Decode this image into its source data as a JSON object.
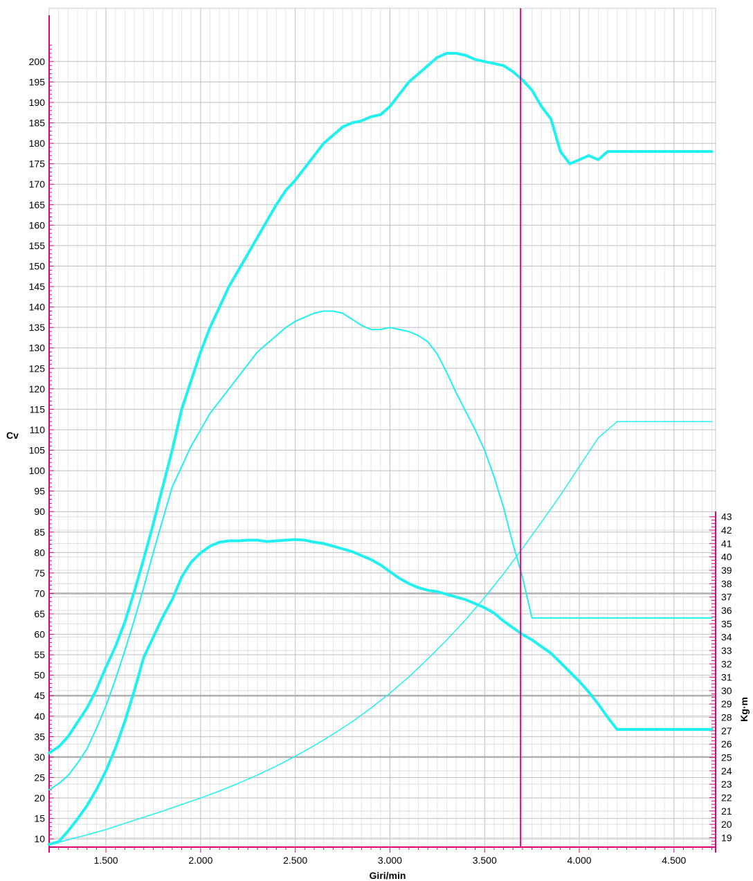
{
  "chart_data": {
    "type": "line",
    "xlabel": "Giri/min",
    "ylabel_left": "Cv",
    "ylabel_right": "Kg·m",
    "xlim": [
      1200,
      4720
    ],
    "ylim_left": [
      8,
      213
    ],
    "ylim_right": [
      18.3,
      43.4
    ],
    "x_ticks": [
      {
        "value": 1500,
        "label": "1.500"
      },
      {
        "value": 2000,
        "label": "2.000"
      },
      {
        "value": 2500,
        "label": "2.500"
      },
      {
        "value": 3000,
        "label": "3.000"
      },
      {
        "value": 3500,
        "label": "3.500"
      },
      {
        "value": 4000,
        "label": "4.000"
      },
      {
        "value": 4500,
        "label": "4.500"
      }
    ],
    "y_left_ticks": [
      10,
      15,
      20,
      25,
      30,
      35,
      40,
      45,
      50,
      55,
      60,
      65,
      70,
      75,
      80,
      85,
      90,
      95,
      100,
      105,
      110,
      115,
      120,
      125,
      130,
      135,
      140,
      145,
      150,
      155,
      160,
      165,
      170,
      175,
      180,
      185,
      190,
      195,
      200
    ],
    "y_right_ticks": [
      19,
      20,
      21,
      22,
      23,
      24,
      25,
      26,
      27,
      28,
      29,
      30,
      31,
      32,
      33,
      34,
      35,
      36,
      37,
      38,
      39,
      40,
      41,
      42,
      43
    ],
    "cursor_x": 3690,
    "grid": true,
    "series": [
      {
        "axis": "left",
        "width": 4,
        "x": [
          1200,
          1250,
          1300,
          1350,
          1400,
          1450,
          1500,
          1550,
          1600,
          1650,
          1700,
          1750,
          1800,
          1850,
          1900,
          1950,
          2000,
          2050,
          2100,
          2150,
          2200,
          2250,
          2300,
          2350,
          2400,
          2450,
          2500,
          2550,
          2600,
          2650,
          2700,
          2750,
          2800,
          2850,
          2900,
          2950,
          3000,
          3050,
          3100,
          3150,
          3200,
          3250,
          3300,
          3350,
          3400,
          3450,
          3500,
          3550,
          3600,
          3650,
          3700,
          3750,
          3800,
          3850,
          3900,
          3950,
          4000,
          4050,
          4100,
          4150,
          4200,
          4250,
          4300,
          4350,
          4400,
          4450,
          4500,
          4550,
          4600,
          4650,
          4700
        ],
        "values": [
          31,
          32.5,
          35,
          38.5,
          42,
          46.5,
          52,
          57,
          63,
          70.5,
          78.5,
          87,
          96,
          105,
          115,
          122,
          129,
          135,
          140,
          145,
          149,
          153,
          157,
          161,
          165,
          168.5,
          171,
          174,
          177,
          180,
          182,
          184,
          185,
          185.5,
          186.5,
          187,
          189,
          192,
          195,
          197,
          199,
          201,
          202,
          202,
          201.5,
          200.5,
          200,
          199.5,
          199,
          197.5,
          195.5,
          193,
          189,
          186,
          178,
          175,
          176,
          177,
          176,
          178,
          178,
          178,
          178,
          178,
          178,
          178,
          178,
          178,
          178,
          178,
          178
        ]
      },
      {
        "axis": "left",
        "width": 2,
        "x": [
          1200,
          1250,
          1300,
          1350,
          1400,
          1450,
          1500,
          1550,
          1600,
          1650,
          1700,
          1750,
          1800,
          1850,
          1900,
          1950,
          2000,
          2050,
          2100,
          2150,
          2200,
          2250,
          2300,
          2350,
          2400,
          2450,
          2500,
          2550,
          2600,
          2650,
          2700,
          2750,
          2800,
          2850,
          2900,
          2950,
          3000,
          3050,
          3100,
          3150,
          3200,
          3250,
          3300,
          3350,
          3400,
          3450,
          3500,
          3550,
          3600,
          3650,
          3700,
          3750,
          3800,
          3850,
          3900,
          3950,
          4000,
          4050,
          4100,
          4150,
          4200,
          4250,
          4300,
          4350,
          4400,
          4450,
          4500,
          4550,
          4600,
          4650,
          4700
        ],
        "values": [
          22,
          23.5,
          25.5,
          28.5,
          32,
          37,
          42.5,
          49,
          56,
          63.5,
          71.5,
          80,
          88,
          96,
          101,
          106,
          110,
          114,
          117,
          120,
          123,
          126,
          129,
          131,
          133,
          135,
          136.5,
          137.5,
          138.5,
          139,
          139,
          138.5,
          137,
          135.5,
          134.5,
          134.5,
          135,
          134.5,
          134,
          133,
          131.5,
          128.5,
          124,
          119,
          114.5,
          110,
          105,
          98.5,
          91,
          82,
          74,
          64,
          64,
          64,
          64,
          64,
          64,
          64,
          64,
          64,
          64,
          64,
          64,
          64,
          64,
          64,
          64,
          64,
          64,
          64,
          64
        ]
      },
      {
        "axis": "right",
        "width": 4,
        "x": [
          1200,
          1250,
          1300,
          1350,
          1400,
          1450,
          1500,
          1550,
          1600,
          1650,
          1700,
          1750,
          1800,
          1850,
          1900,
          1950,
          2000,
          2050,
          2100,
          2150,
          2200,
          2250,
          2300,
          2350,
          2400,
          2450,
          2500,
          2550,
          2600,
          2650,
          2700,
          2750,
          2800,
          2850,
          2900,
          2950,
          3000,
          3050,
          3100,
          3150,
          3200,
          3250,
          3300,
          3350,
          3400,
          3450,
          3500,
          3550,
          3600,
          3650,
          3700,
          3750,
          3800,
          3850,
          3900,
          3950,
          4000,
          4050,
          4100,
          4150,
          4200,
          4250,
          4300,
          4350,
          4400,
          4450,
          4500,
          4550,
          4600,
          4650,
          4700
        ],
        "values": [
          18.5,
          18.7,
          19.5,
          20.4,
          21.4,
          22.6,
          24,
          25.7,
          27.7,
          30,
          32.5,
          34,
          35.5,
          36.8,
          38.5,
          39.6,
          40.3,
          40.8,
          41.1,
          41.2,
          41.2,
          41.25,
          41.25,
          41.15,
          41.2,
          41.25,
          41.3,
          41.25,
          41.1,
          41,
          40.8,
          40.6,
          40.4,
          40.1,
          39.8,
          39.4,
          38.9,
          38.4,
          38,
          37.7,
          37.5,
          37.4,
          37.2,
          37,
          36.8,
          36.5,
          36.2,
          35.8,
          35.2,
          34.7,
          34.2,
          33.8,
          33.3,
          32.8,
          32.1,
          31.4,
          30.7,
          29.9,
          29,
          28,
          27.1,
          27.1,
          27.1,
          27.1,
          27.1,
          27.1,
          27.1,
          27.1,
          27.1,
          27.1,
          27.1
        ]
      },
      {
        "axis": "left",
        "width": 1.5,
        "x": [
          1200,
          1300,
          1400,
          1500,
          1600,
          1700,
          1800,
          1900,
          2000,
          2100,
          2200,
          2300,
          2400,
          2500,
          2600,
          2700,
          2800,
          2900,
          3000,
          3100,
          3200,
          3300,
          3400,
          3500,
          3600,
          3700,
          3800,
          3900,
          4000,
          4100,
          4200,
          4300,
          4400,
          4500,
          4600,
          4700
        ],
        "values": [
          8.5,
          9.8,
          11,
          12.3,
          13.8,
          15.3,
          16.8,
          18.4,
          20,
          21.7,
          23.6,
          25.6,
          27.8,
          30.2,
          32.8,
          35.6,
          38.6,
          42,
          45.6,
          49.6,
          54,
          58.6,
          63.6,
          69,
          74.8,
          81,
          87.4,
          94,
          101,
          108,
          112,
          112,
          112,
          112,
          112,
          112
        ]
      }
    ]
  }
}
